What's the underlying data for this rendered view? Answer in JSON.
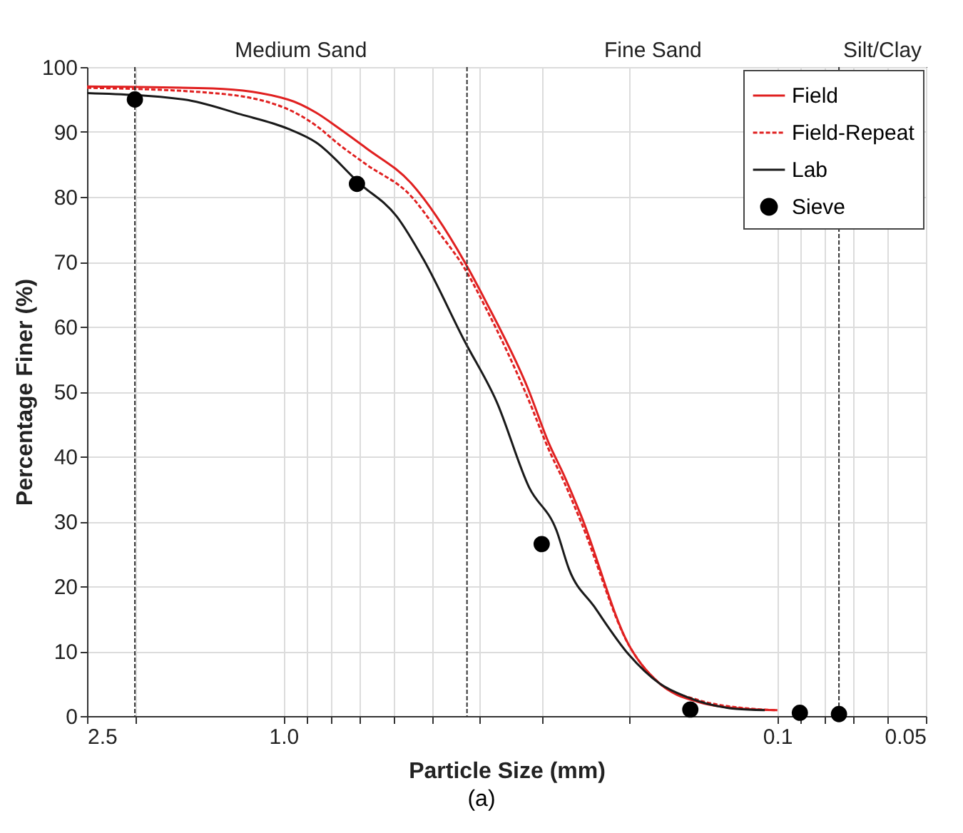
{
  "chart_data": {
    "type": "line",
    "xlabel": "Particle Size (mm)",
    "ylabel": "Percentage Finer (%)",
    "log": "x",
    "xlim": [
      2.5,
      0.05
    ],
    "xticks": [
      2.5,
      {
        "value": 2,
        "label": null
      },
      {
        "value": 1,
        "label": "1.0"
      },
      {
        "value": 0.9,
        "label": null
      },
      {
        "value": 0.8,
        "label": null
      },
      {
        "value": 0.7,
        "label": null
      },
      {
        "value": 0.6,
        "label": null
      },
      {
        "value": 0.5,
        "label": null
      },
      {
        "value": 0.4,
        "label": null
      },
      {
        "value": 0.3,
        "label": null
      },
      {
        "value": 0.2,
        "label": null
      },
      0.1,
      {
        "value": 0.09,
        "label": null
      },
      {
        "value": 0.08,
        "label": null
      },
      {
        "value": 0.07,
        "label": null
      },
      {
        "value": 0.06,
        "label": null
      },
      0.05
    ],
    "ylim": [
      0,
      100
    ],
    "yticks": [
      0,
      10,
      20,
      30,
      40,
      50,
      60,
      70,
      80,
      90,
      100
    ],
    "grid": true,
    "legend": "top right",
    "series": [
      {
        "name": "Field",
        "color": "#e02020",
        "line_style": "solid",
        "x": [
          2.5,
          1.39,
          0.98,
          0.86,
          0.77,
          0.68,
          0.55,
          0.49,
          0.43,
          0.39,
          0.32,
          0.29,
          0.27,
          0.25,
          0.2,
          0.173,
          0.145,
          0.116,
          0.1
        ],
        "values": [
          97,
          96.7,
          95,
          93,
          90.5,
          87.5,
          82,
          77,
          70,
          64,
          50.5,
          42,
          37,
          31,
          11,
          5,
          2.2,
          1.1,
          0.9
        ]
      },
      {
        "name": "Field-Repeat",
        "color": "#e02020",
        "line_style": "dashed",
        "x": [
          2.5,
          1.39,
          0.98,
          0.86,
          0.77,
          0.68,
          0.55,
          0.49,
          0.43,
          0.39,
          0.32,
          0.29,
          0.27,
          0.25,
          0.2,
          0.173,
          0.145,
          0.116,
          0.1
        ],
        "values": [
          96.8,
          96,
          93.5,
          91,
          88,
          85,
          80,
          75,
          69,
          63,
          49,
          41,
          36,
          30,
          11,
          5,
          2.5,
          1.2,
          0.9
        ]
      },
      {
        "name": "Lab",
        "color": "#1a1a1a",
        "line_style": "solid",
        "x": [
          2.5,
          1.59,
          1.22,
          0.98,
          0.86,
          0.7,
          0.59,
          0.52,
          0.43,
          0.37,
          0.318,
          0.28,
          0.264,
          0.235,
          0.2,
          0.173,
          0.152,
          0.121,
          0.106
        ],
        "values": [
          96,
          95,
          92.7,
          90.5,
          88.4,
          82,
          77,
          70.3,
          57.8,
          48.4,
          35.2,
          28.6,
          22.6,
          16.9,
          9.5,
          5,
          2.9,
          1.1,
          0.9
        ]
      },
      {
        "name": "Sieve",
        "type": "scatter",
        "marker": "circle",
        "color": "#000000",
        "x": [
          2.0,
          0.71,
          0.3,
          0.15,
          0.09,
          0.075
        ],
        "values": [
          95,
          82,
          26.5,
          1,
          0.5,
          0.3
        ]
      }
    ],
    "ref_lines": [
      {
        "axis": "x",
        "value": 2.0,
        "line_style": "dashed",
        "color": "#333333"
      },
      {
        "axis": "x",
        "value": 0.425,
        "line_style": "dashed",
        "color": "#333333"
      },
      {
        "axis": "x",
        "value": 0.075,
        "line_style": "dashed",
        "color": "#333333"
      }
    ],
    "annotations": [
      "Medium Sand",
      "Fine Sand",
      "Silt/Clay",
      "(a)"
    ]
  }
}
